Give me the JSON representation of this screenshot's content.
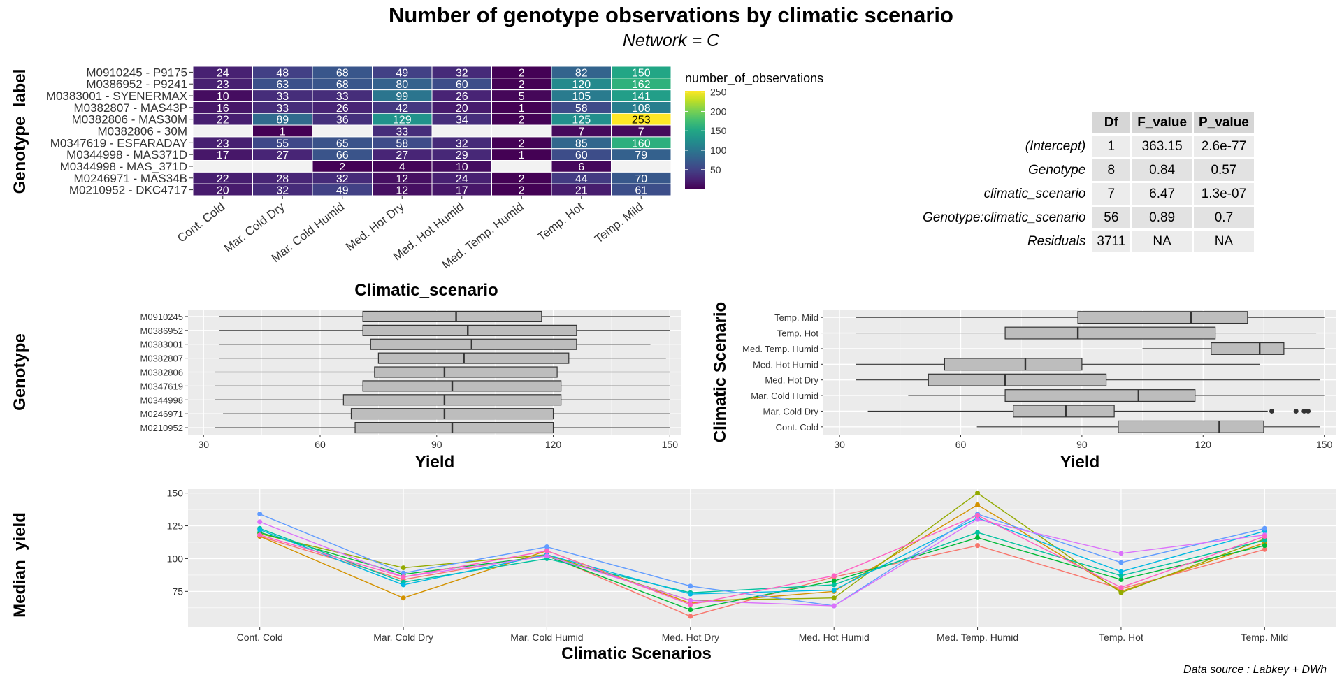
{
  "title": "Number of genotype observations by climatic scenario",
  "subtitle": "Network = C",
  "caption": "Data source : Labkey + DWh",
  "colors": {
    "panel": "#ebebeb",
    "grid": "#ffffff",
    "box_fill": "#bdbdbd",
    "na_tile": "#f2f2f2"
  },
  "chart_data": [
    {
      "type": "heatmap",
      "xlabel": "Climatic_scenario",
      "ylabel": "Genotype_label",
      "x_categories": [
        "Cont. Cold",
        "Mar. Cold Dry",
        "Mar. Cold Humid",
        "Med. Hot Dry",
        "Med. Hot Humid",
        "Med. Temp. Humid",
        "Temp. Hot",
        "Temp. Mild"
      ],
      "y_categories": [
        "M0910245 - P9175",
        "M0386952 - P9241",
        "M0383001 - SYENERMAX",
        "M0382807 - MAS43P",
        "M0382806 - MAS30M",
        "M0382806 - 30M",
        "M0347619 - ESFARADAY",
        "M0344998 - MAS371D",
        "M0344998 - MAS_371D",
        "M0246971 - MAS34B",
        "M0210952 - DKC4717"
      ],
      "values": [
        [
          24,
          48,
          68,
          49,
          32,
          2,
          82,
          150
        ],
        [
          23,
          63,
          68,
          80,
          60,
          2,
          120,
          162
        ],
        [
          10,
          33,
          33,
          99,
          26,
          5,
          105,
          141
        ],
        [
          16,
          33,
          26,
          42,
          20,
          1,
          58,
          108
        ],
        [
          22,
          89,
          36,
          129,
          34,
          2,
          125,
          253
        ],
        [
          null,
          1,
          null,
          33,
          null,
          null,
          7,
          7
        ],
        [
          23,
          55,
          65,
          58,
          32,
          2,
          85,
          160
        ],
        [
          17,
          27,
          66,
          27,
          29,
          1,
          60,
          79
        ],
        [
          null,
          null,
          2,
          4,
          10,
          null,
          6,
          null
        ],
        [
          22,
          28,
          32,
          12,
          24,
          2,
          44,
          70
        ],
        [
          20,
          32,
          49,
          12,
          17,
          2,
          21,
          61
        ]
      ],
      "legend": {
        "title": "number_of_observations",
        "ticks": [
          50,
          100,
          150,
          200,
          250
        ],
        "min": 1,
        "max": 253,
        "position": "right"
      }
    },
    {
      "type": "table",
      "columns": [
        "Df",
        "F_value",
        "P_value"
      ],
      "rows": [
        {
          "name": "(Intercept)",
          "cells": [
            "1",
            "363.15",
            "2.6e-77"
          ]
        },
        {
          "name": "Genotype",
          "cells": [
            "8",
            "0.84",
            "0.57"
          ]
        },
        {
          "name": "climatic_scenario",
          "cells": [
            "7",
            "6.47",
            "1.3e-07"
          ]
        },
        {
          "name": "Genotype:climatic_scenario",
          "cells": [
            "56",
            "0.89",
            "0.7"
          ]
        },
        {
          "name": "Residuals",
          "cells": [
            "3711",
            "NA",
            "NA"
          ]
        }
      ]
    },
    {
      "type": "boxplot",
      "xlabel": "Yield",
      "ylabel": "Genotype",
      "xlim": [
        26,
        153
      ],
      "xticks": [
        30,
        60,
        90,
        120,
        150
      ],
      "categories": [
        "M0910245",
        "M0386952",
        "M0383001",
        "M0382807",
        "M0382806",
        "M0347619",
        "M0344998",
        "M0246971",
        "M0210952"
      ],
      "boxes": [
        {
          "min": 34,
          "q1": 71,
          "median": 95,
          "q3": 117,
          "max": 150
        },
        {
          "min": 34,
          "q1": 71,
          "median": 98,
          "q3": 126,
          "max": 150
        },
        {
          "min": 34,
          "q1": 73,
          "median": 99,
          "q3": 126,
          "max": 145
        },
        {
          "min": 34,
          "q1": 75,
          "median": 97,
          "q3": 124,
          "max": 149
        },
        {
          "min": 33,
          "q1": 74,
          "median": 92,
          "q3": 121,
          "max": 150
        },
        {
          "min": 33,
          "q1": 71,
          "median": 94,
          "q3": 122,
          "max": 150
        },
        {
          "min": 33,
          "q1": 66,
          "median": 92,
          "q3": 122,
          "max": 150
        },
        {
          "min": 35,
          "q1": 68,
          "median": 92,
          "q3": 120,
          "max": 150
        },
        {
          "min": 33,
          "q1": 69,
          "median": 94,
          "q3": 120,
          "max": 150
        }
      ]
    },
    {
      "type": "boxplot",
      "xlabel": "Yield",
      "ylabel": "Climatic Scenario",
      "xlim": [
        26,
        153
      ],
      "xticks": [
        30,
        60,
        90,
        120,
        150
      ],
      "categories": [
        "Temp. Mild",
        "Temp. Hot",
        "Med. Temp. Humid",
        "Med. Hot Humid",
        "Med. Hot Dry",
        "Mar. Cold Humid",
        "Mar. Cold Dry",
        "Cont. Cold"
      ],
      "boxes": [
        {
          "min": 34,
          "q1": 89,
          "median": 117,
          "q3": 131,
          "max": 150
        },
        {
          "min": 34,
          "q1": 71,
          "median": 89,
          "q3": 123,
          "max": 148
        },
        {
          "min": 105,
          "q1": 122,
          "median": 134,
          "q3": 140,
          "max": 150
        },
        {
          "min": 34,
          "q1": 56,
          "median": 76,
          "q3": 90,
          "max": 134
        },
        {
          "min": 34,
          "q1": 52,
          "median": 71,
          "q3": 96,
          "max": 149
        },
        {
          "min": 47,
          "q1": 71,
          "median": 104,
          "q3": 118,
          "max": 150
        },
        {
          "min": 37,
          "q1": 73,
          "median": 86,
          "q3": 98,
          "max": 136,
          "outliers": [
            137,
            143,
            145,
            146
          ]
        },
        {
          "min": 64,
          "q1": 99,
          "median": 124,
          "q3": 135,
          "max": 149
        }
      ]
    },
    {
      "type": "line",
      "xlabel": "Climatic Scenarios",
      "ylabel": "Median_yield",
      "ylim": [
        48,
        153
      ],
      "yticks": [
        75,
        100,
        125,
        150
      ],
      "categories": [
        "Cont. Cold",
        "Mar. Cold Dry",
        "Mar. Cold Humid",
        "Med. Hot Dry",
        "Med. Hot Humid",
        "Med. Temp. Humid",
        "Temp. Hot",
        "Temp. Mild"
      ],
      "series": [
        {
          "color": "#F8766D",
          "values": [
            117,
            84,
            103,
            56,
            86,
            110,
            77,
            107
          ]
        },
        {
          "color": "#D39200",
          "values": [
            117,
            70,
            106,
            66,
            75,
            141,
            75,
            112
          ]
        },
        {
          "color": "#93AA00",
          "values": [
            119,
            93,
            103,
            68,
            70,
            150,
            74,
            115
          ]
        },
        {
          "color": "#00BA38",
          "values": [
            120,
            88,
            102,
            61,
            83,
            116,
            84,
            110
          ]
        },
        {
          "color": "#00C19F",
          "values": [
            123,
            82,
            100,
            74,
            80,
            120,
            87,
            114
          ]
        },
        {
          "color": "#00B9E3",
          "values": [
            122,
            80,
            103,
            73,
            76,
            131,
            90,
            121
          ]
        },
        {
          "color": "#619CFF",
          "values": [
            134,
            89,
            109,
            79,
            64,
            134,
            97,
            123
          ]
        },
        {
          "color": "#DB72FB",
          "values": [
            128,
            86,
            102,
            68,
            64,
            130,
            104,
            118
          ]
        },
        {
          "color": "#FF61C3",
          "values": [
            118,
            86,
            106,
            65,
            87,
            133,
            78,
            117
          ]
        }
      ]
    }
  ]
}
